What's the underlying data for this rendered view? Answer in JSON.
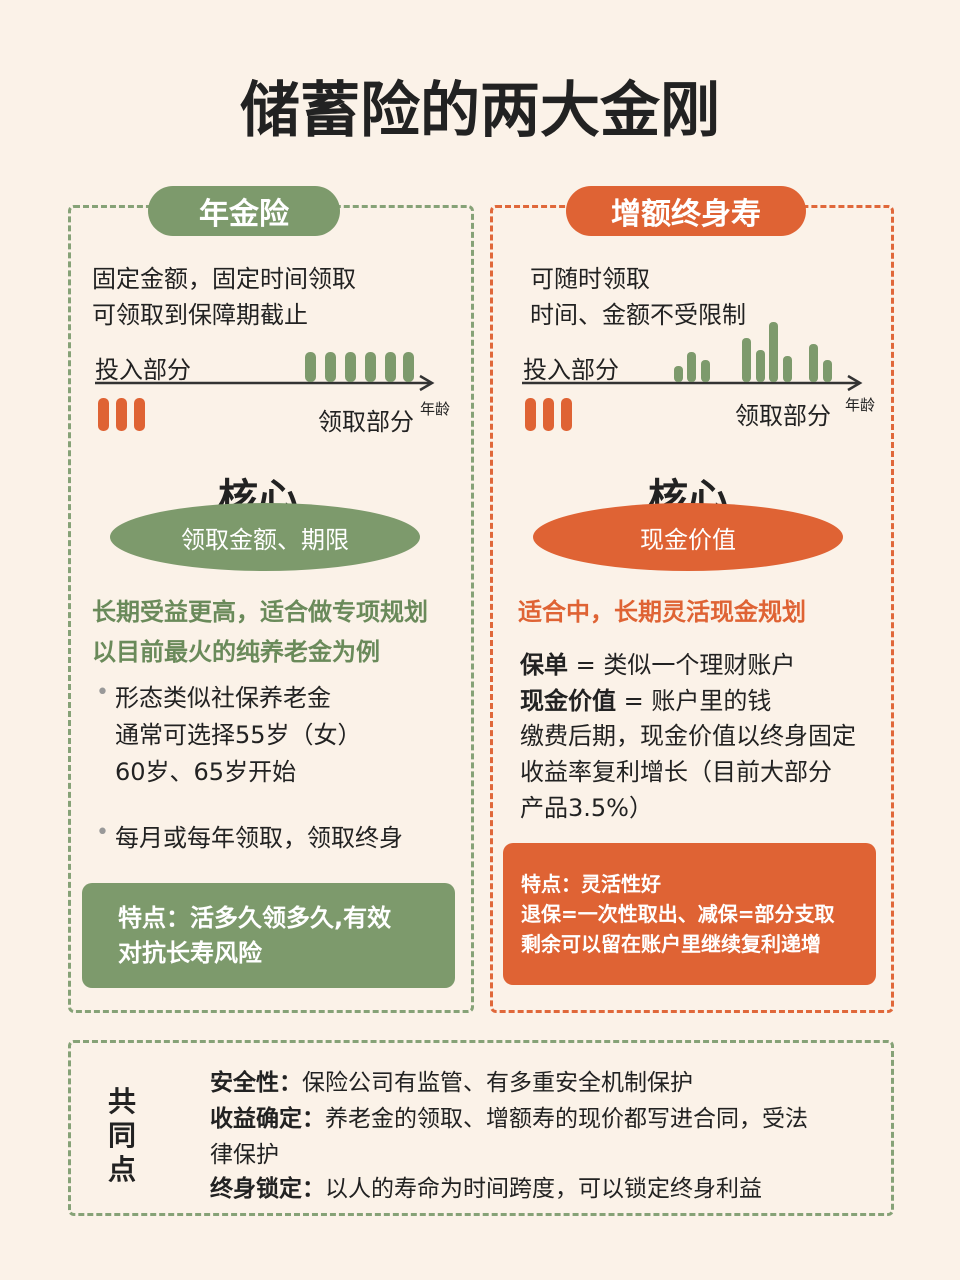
{
  "title": "储蓄险的两大金刚",
  "left": {
    "tag": "年金险",
    "desc": [
      "固定金额，固定时间领取",
      "可领取到保障期截止"
    ],
    "diagram": {
      "invest": "投入部分",
      "receive": "领取部分",
      "axis": "年龄"
    },
    "core_title": "核心",
    "core": "领取金额、期限",
    "highlight": [
      "长期受益更高，适合做专项规划",
      "以目前最火的纯养老金为例"
    ],
    "bullets": [
      [
        "形态类似社保养老金",
        "通常可选择55岁（女）",
        "60岁、65岁开始"
      ],
      [
        "每月或每年领取，领取终身"
      ]
    ],
    "feature": [
      "特点：活多久领多久,有效",
      "对抗长寿风险"
    ]
  },
  "right": {
    "tag": "增额终身寿",
    "desc": [
      "可随时领取",
      "时间、金额不受限制"
    ],
    "diagram": {
      "invest": "投入部分",
      "receive": "领取部分",
      "axis": "年龄"
    },
    "core_title": "核心",
    "core": "现金价值",
    "highlight": [
      "适合中，长期灵活现金规划"
    ],
    "defs": [
      {
        "term": "保单",
        "text": " = 类似一个理财账户"
      },
      {
        "term": "现金价值",
        "text": " = 账户里的钱"
      }
    ],
    "para": [
      "缴费后期，现金价值以终身固定",
      "收益率复利增长（目前大部分",
      "产品3.5%）"
    ],
    "feature": [
      "特点：灵活性好",
      "退保=一次性取出、减保=部分支取",
      "剩余可以留在账户里继续复利递增"
    ]
  },
  "common": {
    "label": "共同点",
    "items": [
      {
        "term": "安全性：",
        "text": "保险公司有监管、有多重安全机制保护"
      },
      {
        "term": "收益确定：",
        "text": "养老金的领取、增额寿的现价都写进合同，受法律保护"
      },
      {
        "term": "终身锁定：",
        "text": "以人的寿命为时间跨度，可以锁定终身利益"
      }
    ]
  }
}
